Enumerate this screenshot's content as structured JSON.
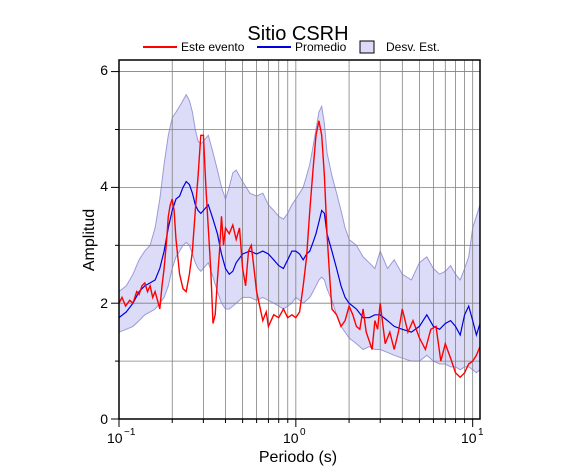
{
  "chart_data": {
    "type": "line",
    "title": "Sitio CSRH",
    "xlabel": "Periodo (s)",
    "ylabel": "Amplitud",
    "xscale": "log",
    "xlim": [
      0.1,
      11
    ],
    "ylim": [
      0,
      6.2
    ],
    "x_ticks": [
      {
        "value": 0.1,
        "base": "10",
        "exp": "−1"
      },
      {
        "value": 1,
        "label": "10",
        "sup": "0",
        "text": "10^0"
      },
      {
        "value": 10,
        "label": "10",
        "sup": "1",
        "text": "10^1"
      }
    ],
    "x_tick_labels": {
      "t0": "10",
      "t0_exp": "−1",
      "t1": "10",
      "t1_exp": "0",
      "t2": "10",
      "t2_exp": "1"
    },
    "y_ticks": [
      0,
      2,
      4,
      6
    ],
    "y_tick_labels": {
      "t0": "0",
      "t1": "2",
      "t2": "4",
      "t3": "6"
    },
    "grid": true,
    "legend_position": "top",
    "legend": {
      "este": "Este evento",
      "promedio": "Promedio",
      "desv": "Desv. Est."
    },
    "colors": {
      "este": "#ff0000",
      "promedio": "#0000dd",
      "band_fill": "#dcdcf8",
      "band_stroke": "#9a9ad8",
      "grid": "#808080"
    },
    "series": [
      {
        "name": "Este evento",
        "x": [
          0.1,
          0.104,
          0.109,
          0.115,
          0.12,
          0.126,
          0.13,
          0.135,
          0.14,
          0.145,
          0.15,
          0.155,
          0.16,
          0.165,
          0.17,
          0.175,
          0.18,
          0.186,
          0.19,
          0.195,
          0.2,
          0.205,
          0.21,
          0.22,
          0.23,
          0.24,
          0.25,
          0.26,
          0.27,
          0.28,
          0.29,
          0.3,
          0.31,
          0.32,
          0.33,
          0.34,
          0.35,
          0.36,
          0.37,
          0.38,
          0.39,
          0.4,
          0.42,
          0.44,
          0.46,
          0.48,
          0.5,
          0.52,
          0.54,
          0.56,
          0.58,
          0.6,
          0.62,
          0.65,
          0.68,
          0.7,
          0.75,
          0.8,
          0.85,
          0.9,
          0.95,
          1.0,
          1.05,
          1.1,
          1.15,
          1.2,
          1.25,
          1.3,
          1.35,
          1.4,
          1.45,
          1.5,
          1.55,
          1.6,
          1.7,
          1.8,
          1.9,
          2.0,
          2.1,
          2.2,
          2.3,
          2.4,
          2.5,
          2.6,
          2.7,
          2.8,
          2.9,
          3.0,
          3.2,
          3.4,
          3.6,
          3.8,
          4.0,
          4.3,
          4.6,
          5.0,
          5.4,
          5.8,
          6.2,
          6.6,
          7.0,
          7.5,
          8.0,
          8.5,
          9.0,
          9.5,
          10.0,
          10.5,
          11.0
        ],
        "y": [
          2.0,
          2.1,
          1.95,
          2.05,
          2.0,
          2.2,
          2.15,
          2.3,
          2.35,
          2.2,
          2.3,
          2.1,
          2.2,
          2.05,
          1.9,
          2.3,
          2.6,
          3.1,
          3.5,
          3.7,
          3.8,
          3.6,
          3.1,
          2.5,
          2.25,
          2.2,
          2.5,
          2.9,
          3.6,
          4.2,
          4.9,
          4.9,
          4.0,
          3.3,
          2.6,
          1.65,
          1.8,
          2.4,
          2.9,
          3.5,
          3.0,
          3.3,
          3.2,
          3.35,
          3.1,
          3.3,
          2.6,
          2.3,
          2.9,
          3.0,
          2.6,
          2.2,
          2.0,
          1.7,
          1.85,
          1.6,
          1.8,
          1.75,
          1.9,
          1.75,
          1.8,
          1.75,
          1.85,
          2.3,
          2.8,
          3.6,
          4.3,
          4.9,
          5.15,
          4.9,
          4.2,
          3.2,
          2.5,
          1.9,
          1.8,
          1.6,
          1.7,
          1.95,
          1.8,
          1.6,
          1.55,
          1.9,
          1.5,
          1.35,
          1.2,
          1.7,
          1.55,
          2.0,
          1.3,
          1.5,
          1.2,
          1.5,
          1.9,
          1.5,
          1.7,
          1.4,
          1.2,
          1.55,
          1.6,
          1.0,
          1.3,
          1.05,
          0.8,
          0.72,
          0.8,
          0.95,
          1.0,
          1.1,
          1.25
        ]
      },
      {
        "name": "Promedio",
        "x": [
          0.1,
          0.11,
          0.12,
          0.13,
          0.14,
          0.15,
          0.16,
          0.17,
          0.18,
          0.19,
          0.2,
          0.21,
          0.22,
          0.23,
          0.24,
          0.25,
          0.26,
          0.27,
          0.28,
          0.29,
          0.3,
          0.32,
          0.34,
          0.36,
          0.38,
          0.4,
          0.42,
          0.44,
          0.46,
          0.5,
          0.55,
          0.6,
          0.65,
          0.7,
          0.75,
          0.8,
          0.85,
          0.9,
          0.95,
          1.0,
          1.05,
          1.1,
          1.15,
          1.2,
          1.25,
          1.3,
          1.35,
          1.4,
          1.45,
          1.5,
          1.6,
          1.7,
          1.8,
          1.9,
          2.0,
          2.2,
          2.4,
          2.6,
          2.8,
          3.0,
          3.3,
          3.6,
          4.0,
          4.5,
          5.0,
          5.5,
          6.0,
          6.5,
          7.0,
          7.5,
          8.0,
          8.5,
          9.0,
          9.5,
          10.0,
          10.5,
          11.0
        ],
        "y": [
          1.75,
          1.85,
          2.0,
          2.2,
          2.3,
          2.35,
          2.4,
          2.6,
          2.9,
          3.3,
          3.6,
          3.8,
          3.85,
          4.0,
          4.1,
          4.05,
          3.9,
          3.7,
          3.6,
          3.55,
          3.6,
          3.7,
          3.45,
          3.2,
          2.85,
          2.6,
          2.5,
          2.55,
          2.7,
          2.85,
          2.9,
          2.85,
          2.9,
          2.85,
          2.75,
          2.65,
          2.6,
          2.75,
          2.9,
          2.9,
          2.85,
          2.75,
          2.85,
          2.9,
          3.05,
          3.2,
          3.4,
          3.6,
          3.55,
          3.2,
          2.9,
          2.6,
          2.3,
          2.1,
          2.0,
          1.9,
          1.75,
          1.75,
          1.8,
          1.8,
          1.7,
          1.6,
          1.55,
          1.5,
          1.6,
          1.8,
          1.6,
          1.55,
          1.65,
          1.7,
          1.6,
          1.45,
          1.8,
          1.95,
          1.7,
          1.45,
          1.65
        ]
      }
    ],
    "band": {
      "name": "Desv. Est.",
      "x": [
        0.1,
        0.11,
        0.12,
        0.13,
        0.14,
        0.15,
        0.16,
        0.17,
        0.18,
        0.19,
        0.2,
        0.21,
        0.22,
        0.23,
        0.24,
        0.25,
        0.26,
        0.27,
        0.28,
        0.29,
        0.3,
        0.32,
        0.34,
        0.36,
        0.38,
        0.4,
        0.42,
        0.44,
        0.46,
        0.5,
        0.55,
        0.6,
        0.65,
        0.7,
        0.75,
        0.8,
        0.85,
        0.9,
        0.95,
        1.0,
        1.05,
        1.1,
        1.15,
        1.2,
        1.25,
        1.3,
        1.35,
        1.4,
        1.45,
        1.5,
        1.6,
        1.7,
        1.8,
        1.9,
        2.0,
        2.2,
        2.4,
        2.6,
        2.8,
        3.0,
        3.3,
        3.6,
        4.0,
        4.5,
        5.0,
        5.5,
        6.0,
        6.5,
        7.0,
        7.5,
        8.0,
        8.5,
        9.0,
        9.5,
        10.0,
        10.5,
        11.0
      ],
      "upper": [
        2.2,
        2.3,
        2.5,
        2.75,
        2.9,
        3.0,
        3.3,
        3.8,
        4.4,
        4.9,
        5.2,
        5.3,
        5.4,
        5.5,
        5.6,
        5.5,
        5.3,
        5.0,
        4.8,
        4.75,
        4.8,
        4.9,
        4.6,
        4.3,
        4.0,
        3.8,
        4.0,
        4.25,
        4.3,
        4.1,
        3.9,
        3.85,
        3.9,
        3.7,
        3.6,
        3.5,
        3.45,
        3.55,
        3.7,
        3.8,
        3.9,
        4.0,
        4.2,
        4.4,
        4.7,
        5.0,
        5.3,
        5.4,
        5.1,
        4.6,
        4.2,
        3.9,
        3.6,
        3.3,
        3.1,
        3.0,
        2.8,
        2.7,
        2.6,
        2.9,
        2.6,
        2.75,
        2.5,
        2.4,
        2.7,
        2.8,
        2.6,
        2.5,
        2.55,
        2.65,
        2.5,
        2.4,
        2.6,
        2.8,
        3.3,
        3.5,
        3.7
      ],
      "lower": [
        1.5,
        1.55,
        1.6,
        1.7,
        1.8,
        1.85,
        1.9,
        2.0,
        2.1,
        2.3,
        2.6,
        2.8,
        2.9,
        3.0,
        3.05,
        3.0,
        2.85,
        2.7,
        2.6,
        2.55,
        2.6,
        2.7,
        2.45,
        2.2,
        2.0,
        1.9,
        1.9,
        1.95,
        2.0,
        2.1,
        2.1,
        2.05,
        2.1,
        2.05,
        2.0,
        1.95,
        1.9,
        1.95,
        2.0,
        2.1,
        2.05,
        2.0,
        2.05,
        2.1,
        2.2,
        2.3,
        2.4,
        2.45,
        2.4,
        2.25,
        2.05,
        1.8,
        1.6,
        1.5,
        1.4,
        1.3,
        1.2,
        1.25,
        1.2,
        1.2,
        1.15,
        1.1,
        1.05,
        1.0,
        1.0,
        1.1,
        1.0,
        0.95,
        0.95,
        0.9,
        0.9,
        0.85,
        0.9,
        0.9,
        0.85,
        0.8,
        0.85
      ]
    }
  }
}
